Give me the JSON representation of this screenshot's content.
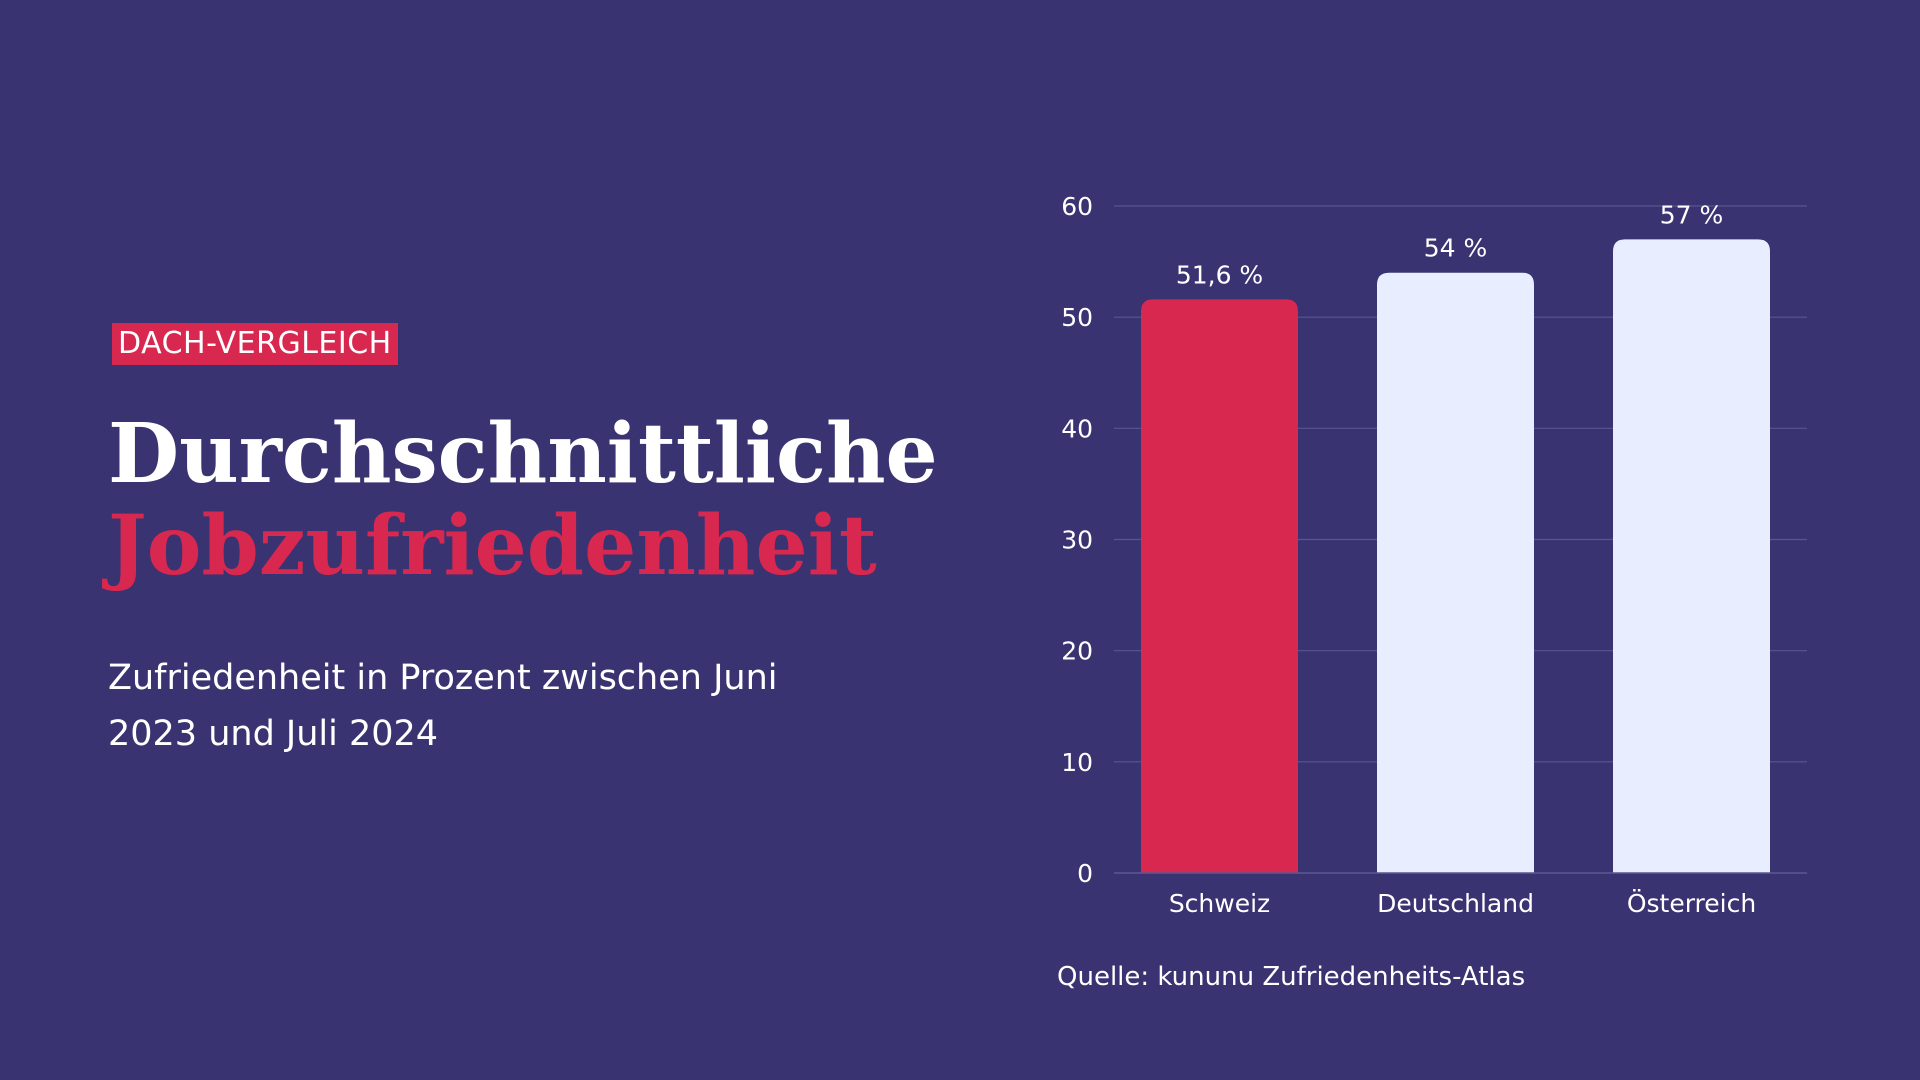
{
  "tag": "DACH-VERGLEICH",
  "title_line1": "Durchschnittliche",
  "title_line2": "Jobzufriedenheit",
  "subtitle": "Zufriedenheit in Prozent zwischen Juni 2023 und Juli 2024",
  "source": "Quelle: kununu Zufriedenheits-Atlas",
  "colors": {
    "background": "#393372",
    "accent": "#d9284f",
    "bar_light": "#e8eeff",
    "gridline": "#5a5590",
    "text": "#ffffff"
  },
  "chart_data": {
    "type": "bar",
    "categories": [
      "Schweiz",
      "Deutschland",
      "Österreich"
    ],
    "values": [
      51.6,
      54,
      57
    ],
    "value_labels": [
      "51,6 %",
      "54 %",
      "57 %"
    ],
    "highlight_index": 0,
    "ylim": [
      0,
      60
    ],
    "yticks": [
      0,
      10,
      20,
      30,
      40,
      50,
      60
    ],
    "grid": true,
    "title": "",
    "xlabel": "",
    "ylabel": ""
  }
}
